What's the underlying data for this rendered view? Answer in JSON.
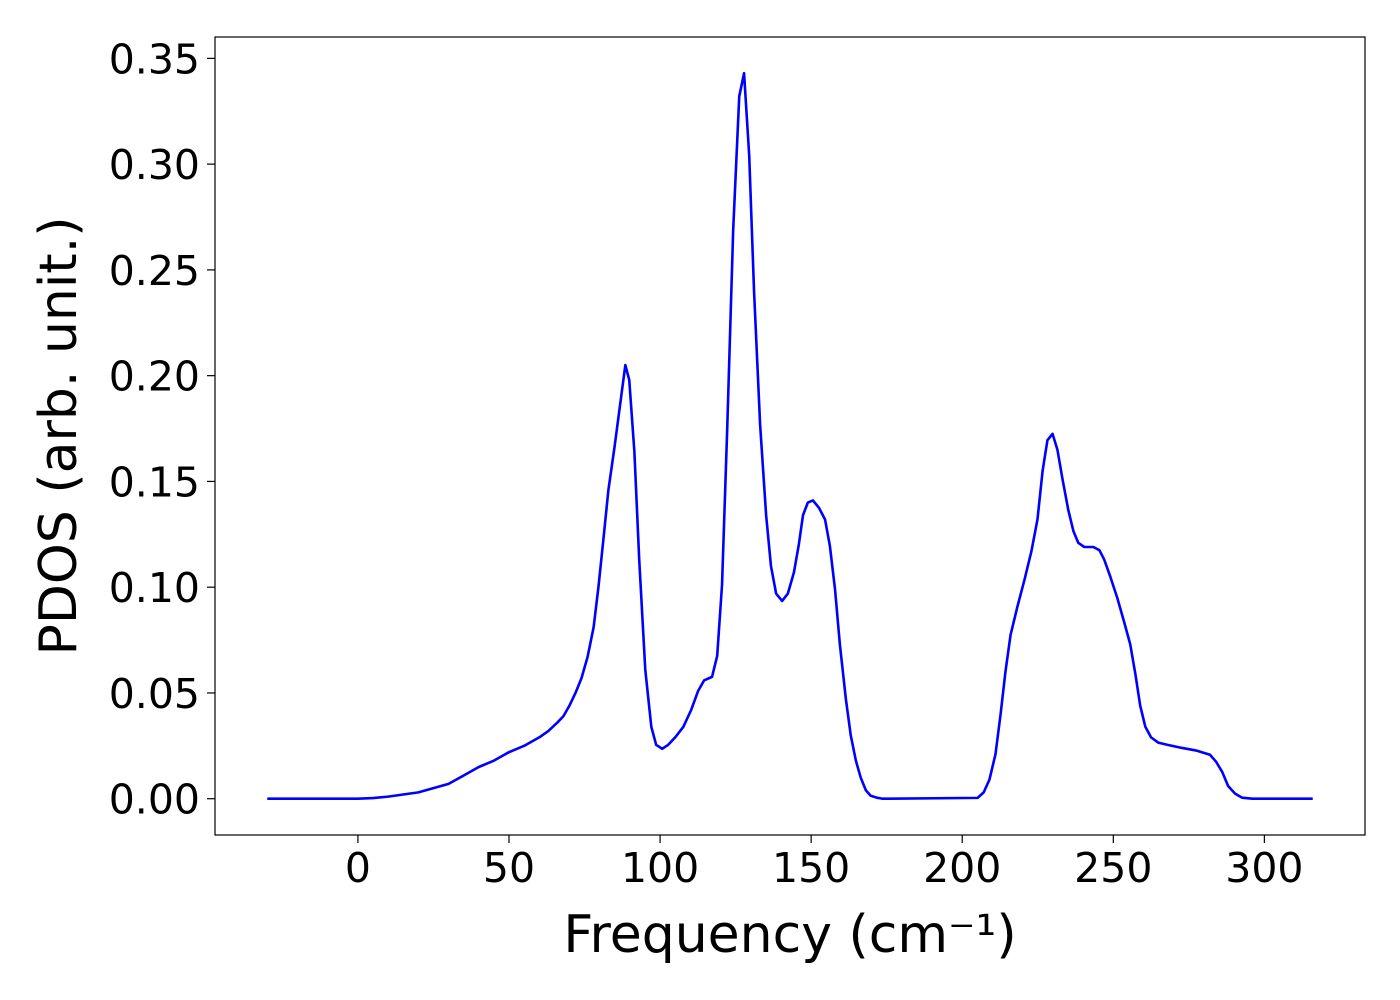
{
  "chart_data": {
    "type": "line",
    "xlabel": "Frequency (cm⁻¹)",
    "ylabel": "PDOS (arb. unit.)",
    "xlim": [
      -47.3,
      333.3
    ],
    "ylim": [
      -0.01715,
      0.3601
    ],
    "xticks": [
      0,
      50,
      100,
      150,
      200,
      250,
      300
    ],
    "yticks": [
      {
        "value": 0,
        "label": "0.00"
      },
      {
        "value": 0.05,
        "label": "0.05"
      },
      {
        "value": 0.1,
        "label": "0.10"
      },
      {
        "value": 0.15,
        "label": "0.15"
      },
      {
        "value": 0.2,
        "label": "0.20"
      },
      {
        "value": 0.25,
        "label": "0.25"
      },
      {
        "value": 0.3,
        "label": "0.30"
      },
      {
        "value": 0.35,
        "label": "0.35"
      }
    ],
    "grid": false,
    "series": [
      {
        "color": "#0000ff",
        "x": [
          -30,
          0,
          5,
          10,
          15,
          20,
          25,
          30,
          35,
          40,
          45,
          50,
          55,
          60,
          63,
          66,
          68,
          70,
          72,
          74,
          76,
          78,
          79.6,
          81.2,
          82.9,
          84.9,
          88.5,
          89.8,
          91.5,
          93.1,
          95.1,
          97.1,
          98.7,
          100.7,
          102.7,
          105,
          107.7,
          110.3,
          112.6,
          114.6,
          117.2,
          118.9,
          120.5,
          122.2,
          124.2,
          126.2,
          127.8,
          129.5,
          131.1,
          133.1,
          135.1,
          136.7,
          138.4,
          140.4,
          142.3,
          144.3,
          145.9,
          147.3,
          148.9,
          150.6,
          152.6,
          154.6,
          156.2,
          157.9,
          159.5,
          161.5,
          163.1,
          164.8,
          166.4,
          168.1,
          169.7,
          171.7,
          173.7,
          205.1,
          207.1,
          209,
          211,
          212.7,
          214.3,
          216,
          218.3,
          220.6,
          222.9,
          224.9,
          226.6,
          228.2,
          229.9,
          231.5,
          233.2,
          235.1,
          236.8,
          238.4,
          240.4,
          243.4,
          245.4,
          247,
          249,
          251.3,
          253.6,
          255.6,
          257.3,
          258.9,
          260.6,
          262.5,
          264.9,
          267.8,
          272.8,
          277.7,
          282,
          284,
          286,
          288,
          290.3,
          292.6,
          296,
          316
        ],
        "values": [
          0,
          0,
          0.0003,
          0.001,
          0.002,
          0.003,
          0.005,
          0.007,
          0.011,
          0.015,
          0.018,
          0.022,
          0.025,
          0.029,
          0.032,
          0.036,
          0.039,
          0.044,
          0.05,
          0.057,
          0.067,
          0.081,
          0.1,
          0.122,
          0.146,
          0.166,
          0.205,
          0.198,
          0.164,
          0.113,
          0.061,
          0.034,
          0.0255,
          0.0236,
          0.0255,
          0.029,
          0.034,
          0.042,
          0.051,
          0.056,
          0.0576,
          0.0675,
          0.101,
          0.174,
          0.269,
          0.332,
          0.343,
          0.304,
          0.24,
          0.177,
          0.134,
          0.11,
          0.097,
          0.0935,
          0.097,
          0.107,
          0.12,
          0.134,
          0.14,
          0.141,
          0.1375,
          0.132,
          0.1195,
          0.099,
          0.073,
          0.047,
          0.03,
          0.018,
          0.01,
          0.004,
          0.0014,
          0.0005,
          0,
          0.0004,
          0.003,
          0.009,
          0.021,
          0.04,
          0.06,
          0.0775,
          0.091,
          0.1035,
          0.117,
          0.132,
          0.155,
          0.1695,
          0.1725,
          0.165,
          0.151,
          0.1365,
          0.1265,
          0.121,
          0.119,
          0.119,
          0.1175,
          0.113,
          0.105,
          0.095,
          0.0835,
          0.073,
          0.059,
          0.044,
          0.034,
          0.029,
          0.0265,
          0.0255,
          0.024,
          0.0227,
          0.0208,
          0.0175,
          0.0128,
          0.006,
          0.0024,
          0.0005,
          0,
          0
        ]
      }
    ]
  }
}
